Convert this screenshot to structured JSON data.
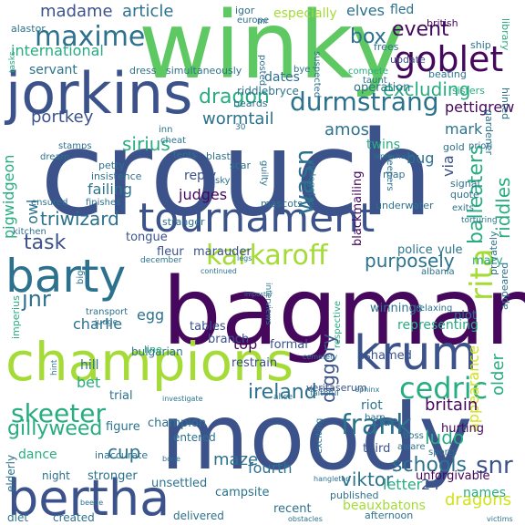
{
  "palette": {
    "dark_purple": "#46085c",
    "indigo": "#3b528b",
    "blue": "#2c728e",
    "teal": "#21918c",
    "green": "#27ad81",
    "lime": "#5ec962",
    "light_green": "#a5db36",
    "yellow": "#d2e21b",
    "bright_yellow": "#fde725"
  },
  "words": [
    {
      "text": "crouch"
    },
    {
      "text": "winky"
    },
    {
      "text": "bagman"
    },
    {
      "text": "moody"
    },
    {
      "text": "jorkins"
    },
    {
      "text": "champions"
    },
    {
      "text": "tournament"
    },
    {
      "text": "barty"
    },
    {
      "text": "krum"
    },
    {
      "text": "bertha"
    },
    {
      "text": "goblet"
    },
    {
      "text": "karkaroff"
    },
    {
      "text": "cedric"
    },
    {
      "text": "durmstrang"
    },
    {
      "text": "maxime"
    },
    {
      "text": "skeeter"
    },
    {
      "text": "frank"
    },
    {
      "text": "rita"
    },
    {
      "text": "task"
    },
    {
      "text": "jnr"
    },
    {
      "text": "wasn"
    },
    {
      "text": "triwizard"
    },
    {
      "text": "madame"
    },
    {
      "text": "article"
    },
    {
      "text": "especially"
    },
    {
      "text": "elves"
    },
    {
      "text": "fled"
    },
    {
      "text": "box"
    },
    {
      "text": "event"
    },
    {
      "text": "excluding"
    },
    {
      "text": "international"
    },
    {
      "text": "dragon"
    },
    {
      "text": "sirius"
    },
    {
      "text": "portkey"
    },
    {
      "text": "wormtail"
    },
    {
      "text": "amos"
    },
    {
      "text": "twins"
    },
    {
      "text": "pettigrew"
    },
    {
      "text": "mark"
    },
    {
      "text": "servant"
    },
    {
      "text": "dates"
    },
    {
      "text": "operation"
    },
    {
      "text": "bug"
    },
    {
      "text": "via"
    },
    {
      "text": "balleaters"
    },
    {
      "text": "riddles"
    },
    {
      "text": "failing"
    },
    {
      "text": "judges"
    },
    {
      "text": "reply"
    },
    {
      "text": "purposely"
    },
    {
      "text": "egg"
    },
    {
      "text": "charlie"
    },
    {
      "text": "ireland"
    },
    {
      "text": "diggory"
    },
    {
      "text": "britain"
    },
    {
      "text": "ludo"
    },
    {
      "text": "snr"
    },
    {
      "text": "schools"
    },
    {
      "text": "gillyweed"
    },
    {
      "text": "cup"
    },
    {
      "text": "viktor"
    },
    {
      "text": "dragons"
    },
    {
      "text": "beauxbatons"
    },
    {
      "text": "fourth"
    },
    {
      "text": "maze"
    },
    {
      "text": "appearance"
    },
    {
      "text": "older"
    },
    {
      "text": "top"
    },
    {
      "text": "bet"
    },
    {
      "text": "hill"
    },
    {
      "text": "riot"
    },
    {
      "text": "clue"
    },
    {
      "text": "letter"
    },
    {
      "text": "dance"
    },
    {
      "text": "third"
    },
    {
      "text": "24"
    },
    {
      "text": "tongue"
    },
    {
      "text": "fleur"
    },
    {
      "text": "marauder"
    },
    {
      "text": "police"
    },
    {
      "text": "yule"
    },
    {
      "text": "mary"
    },
    {
      "text": "names"
    },
    {
      "text": "pigwidgeon"
    },
    {
      "text": "owl"
    },
    {
      "text": "blackmailing"
    },
    {
      "text": "underwater"
    },
    {
      "text": "trial"
    },
    {
      "text": "tables"
    },
    {
      "text": "branch"
    },
    {
      "text": "formal"
    },
    {
      "text": "restrain"
    },
    {
      "text": "winnings"
    },
    {
      "text": "representing"
    },
    {
      "text": "plot"
    },
    {
      "text": "hurting"
    },
    {
      "text": "ashamed"
    },
    {
      "text": "veritaserum"
    },
    {
      "text": "published"
    },
    {
      "text": "unforgivable"
    },
    {
      "text": "stronger"
    },
    {
      "text": "unsettled"
    },
    {
      "text": "campsite"
    },
    {
      "text": "recent"
    },
    {
      "text": "delivered"
    },
    {
      "text": "created"
    },
    {
      "text": "afternoon"
    },
    {
      "text": "night"
    },
    {
      "text": "figure"
    },
    {
      "text": "champion"
    },
    {
      "text": "entered"
    },
    {
      "text": "bulgarian"
    },
    {
      "text": "inaccurate"
    },
    {
      "text": "elderly"
    },
    {
      "text": "diet"
    },
    {
      "text": "igor"
    },
    {
      "text": "europe"
    },
    {
      "text": "alastor"
    },
    {
      "text": "british"
    },
    {
      "text": "library"
    },
    {
      "text": "frees"
    },
    {
      "text": "update"
    },
    {
      "text": "ship"
    },
    {
      "text": "posted"
    },
    {
      "text": "bye"
    },
    {
      "text": "suspected"
    },
    {
      "text": "compete"
    },
    {
      "text": "taunt"
    },
    {
      "text": "riddlebryce"
    },
    {
      "text": "beards"
    },
    {
      "text": "beating"
    },
    {
      "text": "sisters"
    },
    {
      "text": "gardener"
    },
    {
      "text": "hinted"
    },
    {
      "text": "dress"
    },
    {
      "text": "simultaneously"
    },
    {
      "text": "gold"
    },
    {
      "text": "priori"
    },
    {
      "text": "inn"
    },
    {
      "text": "cheat"
    },
    {
      "text": "blast"
    },
    {
      "text": "scar"
    },
    {
      "text": "guilty"
    },
    {
      "text": "delegates"
    },
    {
      "text": "keepers"
    },
    {
      "text": "map"
    },
    {
      "text": "signal"
    },
    {
      "text": "quote"
    },
    {
      "text": "sky"
    },
    {
      "text": "tents"
    },
    {
      "text": "insistence"
    },
    {
      "text": "petty"
    },
    {
      "text": "stamps"
    },
    {
      "text": "dream"
    },
    {
      "text": "ensured"
    },
    {
      "text": "finishes"
    },
    {
      "text": "stranger"
    },
    {
      "text": "mascots"
    },
    {
      "text": "exits"
    },
    {
      "text": "torturing"
    },
    {
      "text": "kitchen"
    },
    {
      "text": "transport"
    },
    {
      "text": "december"
    },
    {
      "text": "continued"
    },
    {
      "text": "legs"
    },
    {
      "text": "interviews"
    },
    {
      "text": "albania"
    },
    {
      "text": "privately"
    },
    {
      "text": "relaxing"
    },
    {
      "text": "appeared"
    },
    {
      "text": "judge"
    },
    {
      "text": "line"
    },
    {
      "text": "imperius"
    },
    {
      "text": "big"
    },
    {
      "text": "respective"
    },
    {
      "text": "cemetery"
    },
    {
      "text": "faithful"
    },
    {
      "text": "alice"
    },
    {
      "text": "sphinx"
    },
    {
      "text": "boss"
    },
    {
      "text": "aware"
    },
    {
      "text": "sports"
    },
    {
      "text": "barn"
    },
    {
      "text": "exciting"
    },
    {
      "text": "hangleton"
    },
    {
      "text": "investigate"
    },
    {
      "text": "bone"
    },
    {
      "text": "beetle"
    },
    {
      "text": "obstacles"
    },
    {
      "text": "victims"
    },
    {
      "text": "tasks"
    },
    {
      "text": "mr"
    },
    {
      "text": "30"
    },
    {
      "text": "leprechaun"
    },
    {
      "text": "hint"
    },
    {
      "text": "imposter"
    }
  ]
}
